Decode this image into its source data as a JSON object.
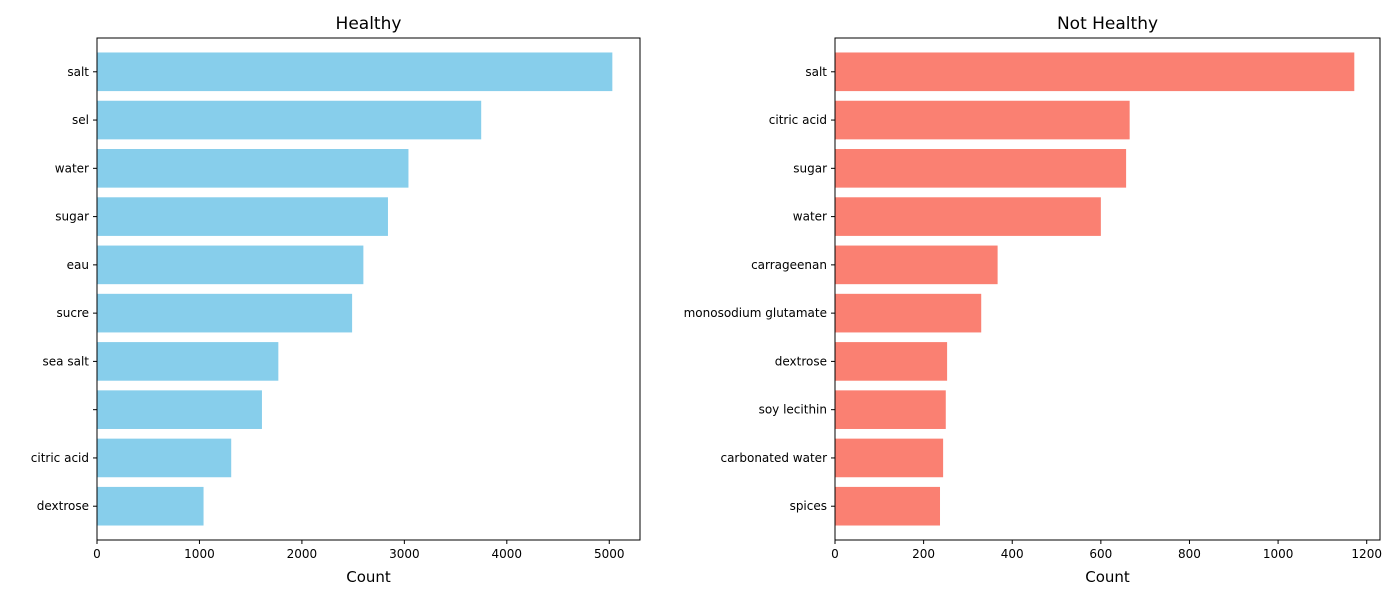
{
  "chart_data": [
    {
      "type": "bar",
      "orientation": "horizontal",
      "title": "Healthy",
      "xlabel": "Count",
      "ylabel": "",
      "color": "#87ceeb",
      "xlim": [
        0,
        5300
      ],
      "xticks": [
        0,
        1000,
        2000,
        3000,
        4000,
        5000
      ],
      "categories": [
        " salt",
        " sel",
        " water",
        " sugar",
        " eau",
        " sucre",
        " sea salt",
        "",
        " citric acid",
        " dextrose"
      ],
      "values": [
        5030,
        3750,
        3040,
        2840,
        2600,
        2490,
        1770,
        1610,
        1310,
        1040
      ]
    },
    {
      "type": "bar",
      "orientation": "horizontal",
      "title": "Not Healthy",
      "xlabel": "Count",
      "ylabel": "",
      "color": "#fa8072",
      "xlim": [
        0,
        1230
      ],
      "xticks": [
        0,
        200,
        400,
        600,
        800,
        1000,
        1200
      ],
      "categories": [
        " salt",
        " citric acid",
        " sugar",
        " water",
        " carrageenan",
        " monosodium glutamate",
        " dextrose",
        " soy lecithin",
        " carbonated water",
        " spices"
      ],
      "values": [
        1172,
        665,
        657,
        600,
        367,
        330,
        253,
        250,
        244,
        237
      ]
    }
  ]
}
